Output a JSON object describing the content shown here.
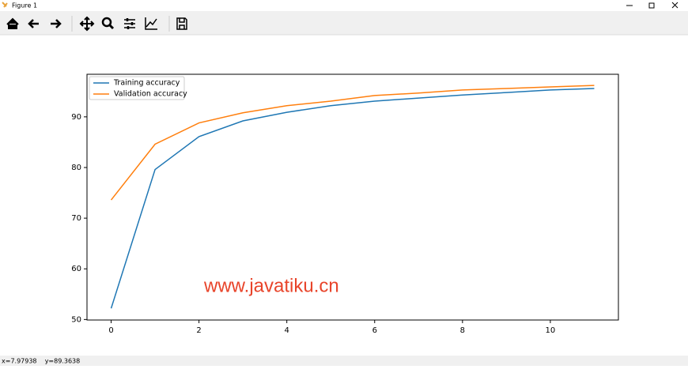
{
  "window": {
    "title": "Figure 1",
    "status": "x=7.97938    y=89.3638"
  },
  "chart_data": {
    "type": "line",
    "x": [
      0,
      1,
      2,
      3,
      4,
      5,
      6,
      7,
      8,
      9,
      10,
      11
    ],
    "series": [
      {
        "name": "Training accuracy",
        "color": "#1f77b4",
        "values": [
          52.2,
          79.6,
          86.1,
          89.2,
          90.9,
          92.2,
          93.1,
          93.7,
          94.3,
          94.8,
          95.3,
          95.6
        ]
      },
      {
        "name": "Validation accuracy",
        "color": "#ff7f0e",
        "values": [
          73.6,
          84.6,
          88.8,
          90.8,
          92.2,
          93.1,
          94.2,
          94.7,
          95.3,
          95.6,
          95.9,
          96.2
        ]
      }
    ],
    "xlim": [
      -0.55,
      11.55
    ],
    "xticks": [
      0,
      2,
      4,
      6,
      8,
      10
    ],
    "ylim": [
      49.9,
      98.4
    ],
    "yticks": [
      50,
      60,
      70,
      80,
      90
    ],
    "legend": "upper left",
    "annotation": "www.javatiku.cn"
  }
}
